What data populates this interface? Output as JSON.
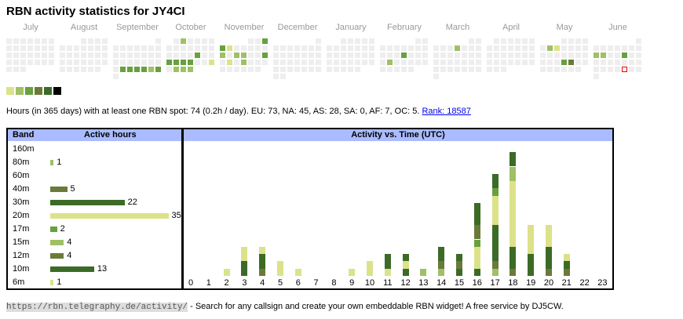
{
  "title": "RBN activity statistics for JY4CI",
  "colors": {
    "l1": "#dce28a",
    "l2": "#9fc065",
    "l3": "#68a040",
    "l4": "#6b7a3a",
    "l5": "#3b6b26",
    "l6": "#000000",
    "empty": "#eeeeee",
    "header": "#aabbff"
  },
  "calendar": {
    "months": [
      {
        "name": "July",
        "offset": 0,
        "days": 31,
        "active": {}
      },
      {
        "name": "August",
        "offset": 3,
        "days": 31,
        "active": {}
      },
      {
        "name": "September",
        "offset": 6,
        "days": 30,
        "active": {
          "24": "l3",
          "25": "l3",
          "26": "l3",
          "27": "l3",
          "28": "l2",
          "29": "l3"
        }
      },
      {
        "name": "October",
        "offset": 1,
        "days": 31,
        "active": {
          "2": "l2",
          "18": "l3",
          "21": "l3",
          "22": "l3",
          "23": "l3",
          "24": "l3",
          "27": "l1",
          "29": "l2",
          "30": "l2",
          "31": "l2"
        }
      },
      {
        "name": "November",
        "offset": 4,
        "days": 30,
        "active": {
          "3": "l3",
          "4": "l3",
          "5": "l1",
          "11": "l2",
          "13": "l2",
          "14": "l2",
          "17": "l3",
          "19": "l1",
          "21": "l2"
        }
      },
      {
        "name": "December",
        "offset": 6,
        "days": 31,
        "active": {}
      },
      {
        "name": "January",
        "offset": 2,
        "days": 31,
        "active": {}
      },
      {
        "name": "February",
        "offset": 5,
        "days": 28,
        "active": {
          "13": "l3",
          "18": "l2"
        }
      },
      {
        "name": "March",
        "offset": 5,
        "days": 31,
        "active": {
          "6": "l2"
        }
      },
      {
        "name": "April",
        "offset": 1,
        "days": 30,
        "active": {}
      },
      {
        "name": "May",
        "offset": 3,
        "days": 31,
        "active": {
          "6": "l2",
          "7": "l1",
          "22": "l3",
          "23": "l4"
        }
      },
      {
        "name": "June",
        "offset": 6,
        "days": 30,
        "active": {
          "9": "l2",
          "10": "l2",
          "13": "l3"
        },
        "today": 27
      }
    ],
    "legend_levels": [
      "l1",
      "l2",
      "l3",
      "l4",
      "l5",
      "l6"
    ]
  },
  "summary": {
    "text": "Hours (in 365 days) with at least one RBN spot: 74 (0.2h / day). EU: 73, NA: 45, AS: 28, SA: 0, AF: 7, OC: 5.",
    "rank_link": "Rank: 18587"
  },
  "bands": {
    "header_band": "Band",
    "header_hours": "Active hours",
    "rows": [
      {
        "band": "160m",
        "hours": null,
        "color": "l2"
      },
      {
        "band": "80m",
        "hours": 1,
        "color": "l2"
      },
      {
        "band": "60m",
        "hours": null,
        "color": "l2"
      },
      {
        "band": "40m",
        "hours": 5,
        "color": "l4"
      },
      {
        "band": "30m",
        "hours": 22,
        "color": "l5"
      },
      {
        "band": "20m",
        "hours": 35,
        "color": "l1"
      },
      {
        "band": "17m",
        "hours": 2,
        "color": "l3"
      },
      {
        "band": "15m",
        "hours": 4,
        "color": "l2"
      },
      {
        "band": "12m",
        "hours": 4,
        "color": "l4"
      },
      {
        "band": "10m",
        "hours": 13,
        "color": "l5"
      },
      {
        "band": "6m",
        "hours": 1,
        "color": "l1"
      }
    ]
  },
  "chart_data": {
    "type": "bar",
    "title": "Activity vs. Time (UTC)",
    "categories": [
      "0",
      "1",
      "2",
      "3",
      "4",
      "5",
      "6",
      "7",
      "8",
      "9",
      "10",
      "11",
      "12",
      "13",
      "14",
      "15",
      "16",
      "17",
      "18",
      "19",
      "20",
      "21",
      "22",
      "23"
    ],
    "stacks": [
      [],
      [],
      [
        [
          "l1",
          1
        ]
      ],
      [
        [
          "l5",
          2
        ],
        [
          "l1",
          2
        ]
      ],
      [
        [
          "l4",
          1
        ],
        [
          "l5",
          2
        ],
        [
          "l1",
          1
        ]
      ],
      [
        [
          "l1",
          2
        ]
      ],
      [
        [
          "l1",
          1
        ]
      ],
      [],
      [],
      [
        [
          "l1",
          1
        ]
      ],
      [
        [
          "l1",
          2
        ]
      ],
      [
        [
          "l1",
          1
        ],
        [
          "l5",
          2
        ]
      ],
      [
        [
          "l5",
          1
        ],
        [
          "l1",
          1
        ],
        [
          "l5",
          1
        ]
      ],
      [
        [
          "l2",
          1
        ]
      ],
      [
        [
          "l2",
          1
        ],
        [
          "l4",
          1
        ],
        [
          "l5",
          2
        ]
      ],
      [
        [
          "l5",
          1
        ],
        [
          "l4",
          1
        ],
        [
          "l5",
          1
        ]
      ],
      [
        [
          "l5",
          1
        ],
        [
          "l1",
          3
        ],
        [
          "l3",
          1
        ],
        [
          "l4",
          2
        ],
        [
          "l5",
          3
        ]
      ],
      [
        [
          "l2",
          1
        ],
        [
          "l4",
          1
        ],
        [
          "l5",
          5
        ],
        [
          "l1",
          4
        ],
        [
          "l3",
          1
        ],
        [
          "l5",
          2
        ]
      ],
      [
        [
          "l4",
          1
        ],
        [
          "l5",
          3
        ],
        [
          "l1",
          9
        ],
        [
          "l2",
          2
        ],
        [
          "l5",
          2
        ]
      ],
      [
        [
          "l5",
          3
        ],
        [
          "l1",
          4
        ]
      ],
      [
        [
          "l4",
          1
        ],
        [
          "l5",
          3
        ],
        [
          "l1",
          3
        ]
      ],
      [
        [
          "l4",
          1
        ],
        [
          "l5",
          1
        ],
        [
          "l1",
          1
        ]
      ],
      [],
      []
    ]
  },
  "footer": {
    "url": "https://rbn.telegraphy.de/activity/",
    "text": " - Search for any callsign and create your own embeddable RBN widget! A free service by DJ5CW."
  }
}
